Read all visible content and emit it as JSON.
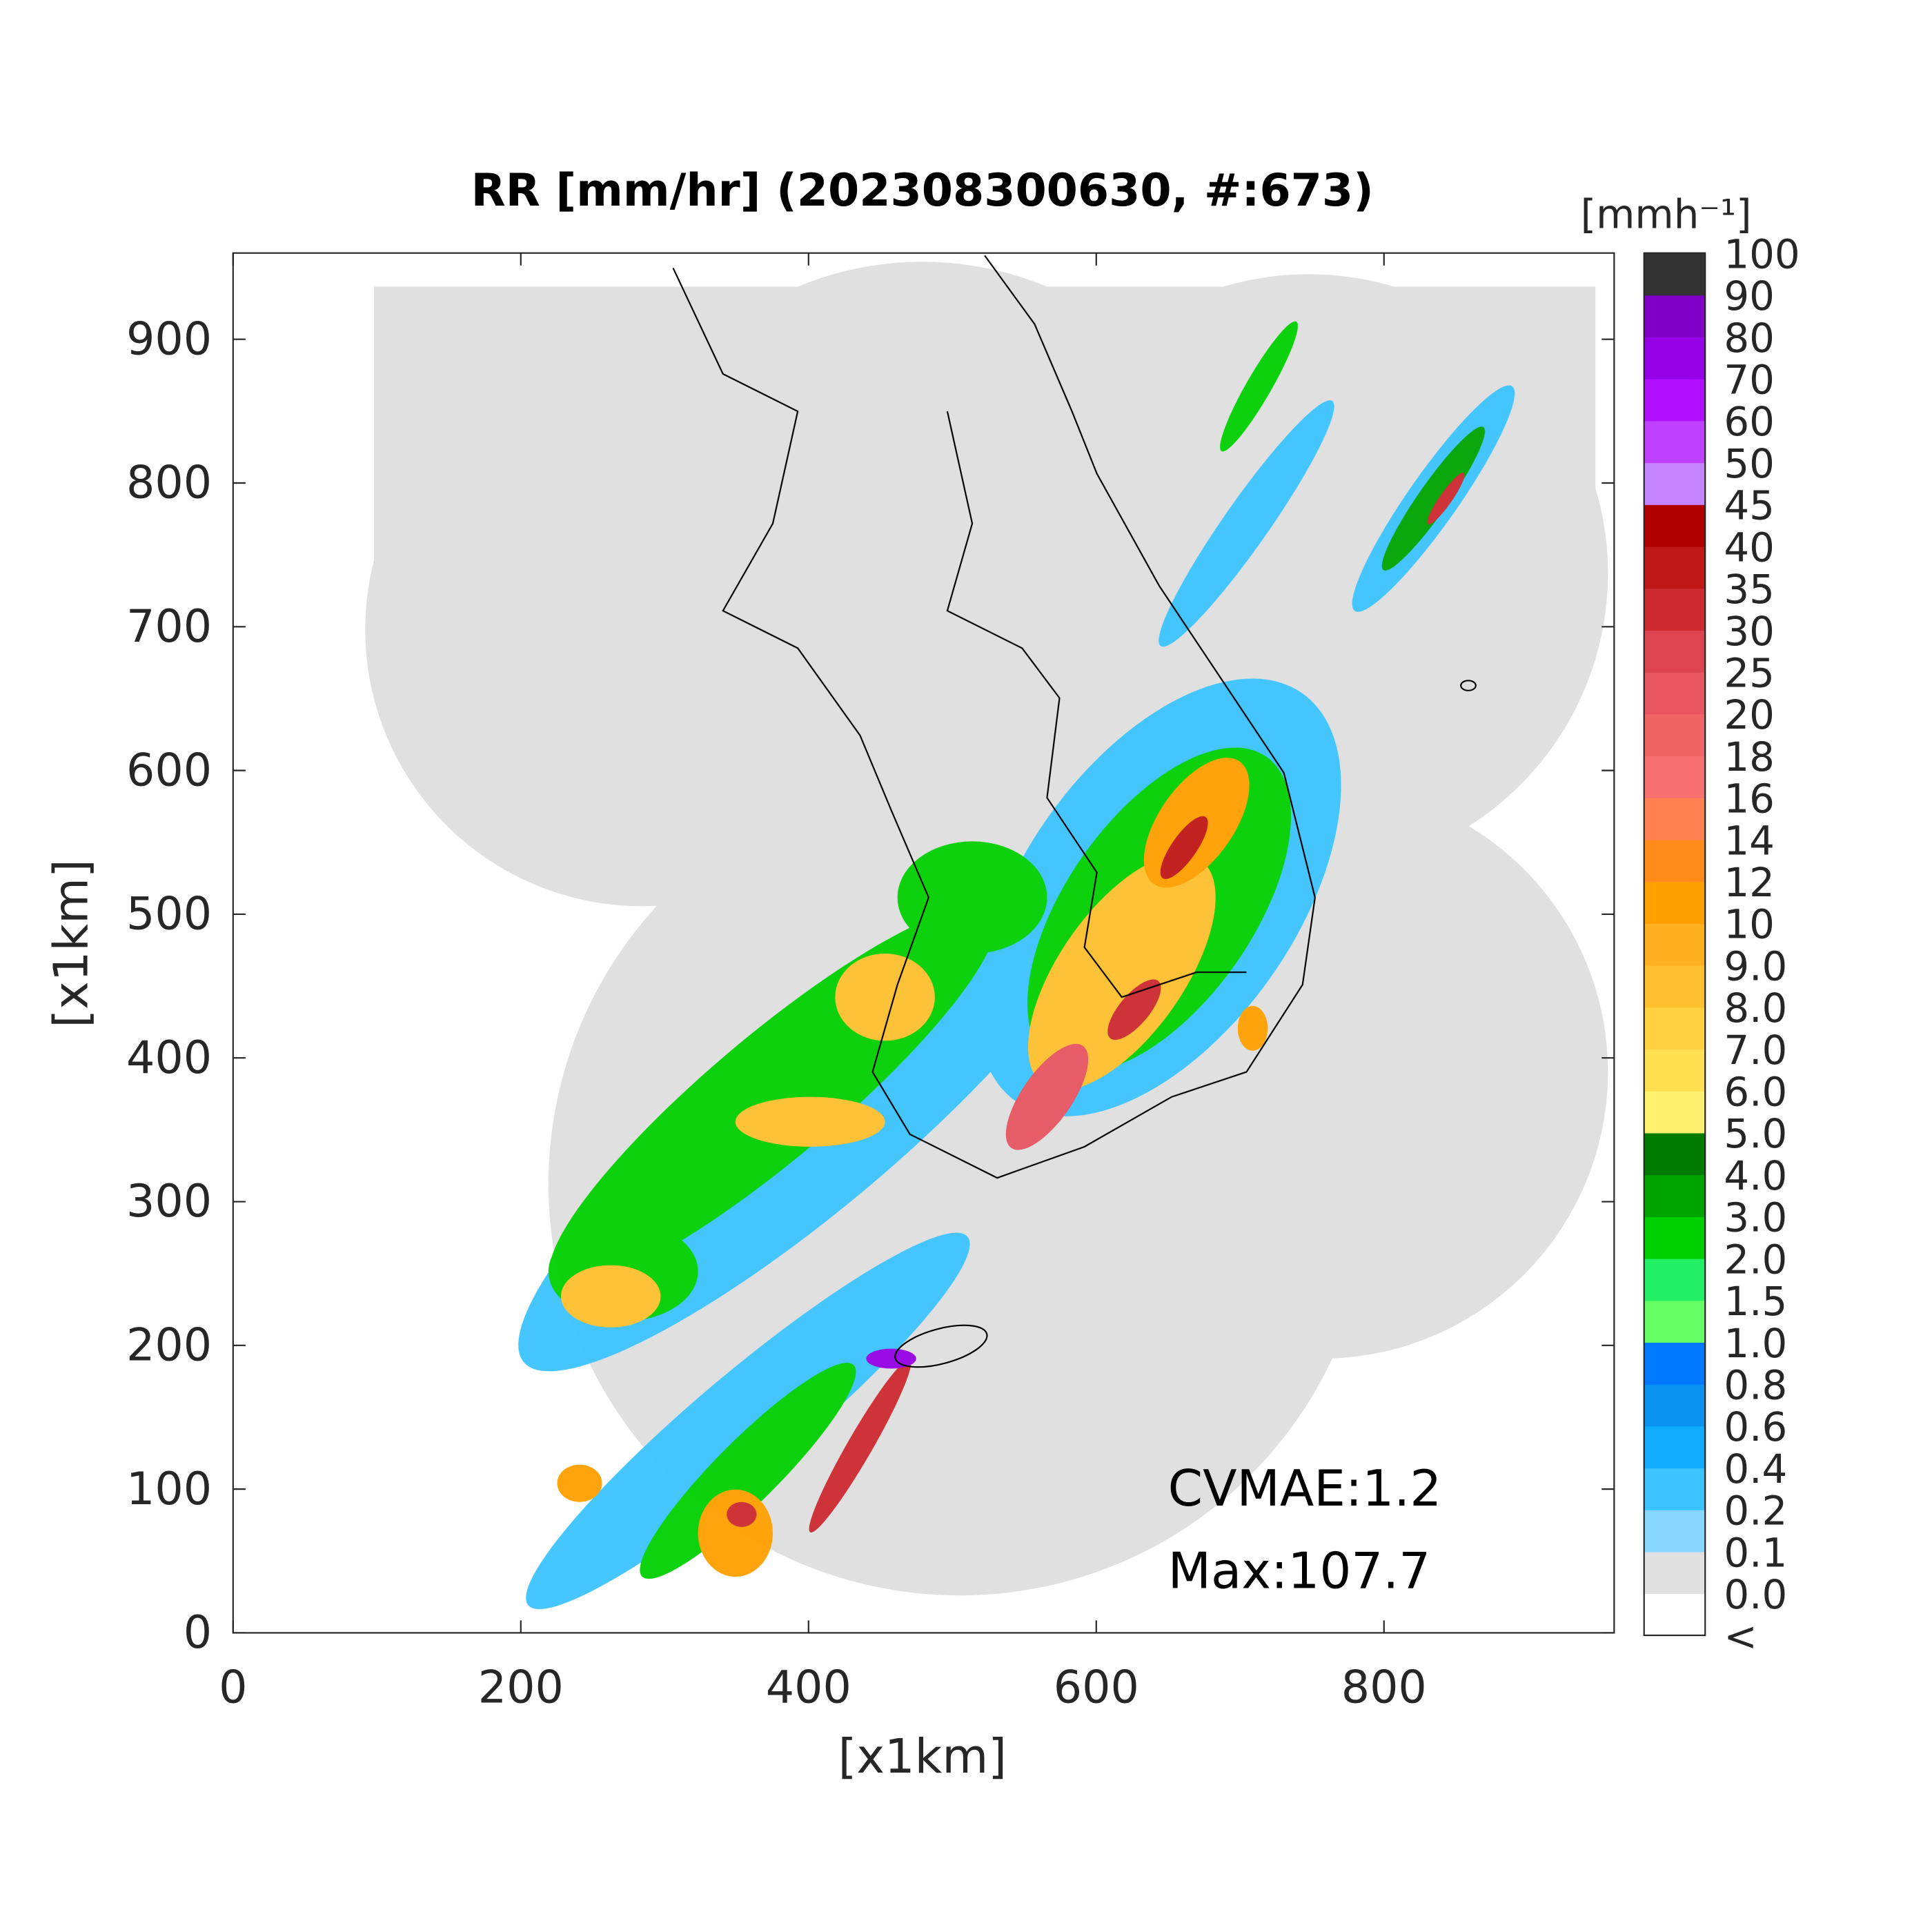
{
  "chart_data": {
    "type": "map",
    "title": "RR [mm/hr] (202308300630, #:673)",
    "xlabel": "[x1km]",
    "ylabel": "[x1km]",
    "xlim": [
      0,
      960
    ],
    "ylim": [
      0,
      960
    ],
    "xticks": [
      0,
      200,
      400,
      600,
      800
    ],
    "yticks": [
      0,
      100,
      200,
      300,
      400,
      500,
      600,
      700,
      800,
      900
    ],
    "annotations": [
      "CVMAE:1.2",
      "Max:107.7"
    ],
    "colorbar": {
      "title": "[mmh⁻¹]",
      "labels": [
        "<",
        "0.0",
        "0.1",
        "0.2",
        "0.4",
        "0.6",
        "0.8",
        "1.0",
        "1.5",
        "2.0",
        "3.0",
        "4.0",
        "5.0",
        "6.0",
        "7.0",
        "8.0",
        "9.0",
        "10",
        "12",
        "14",
        "16",
        "18",
        "20",
        "25",
        "30",
        "35",
        "40",
        "45",
        "50",
        "60",
        "70",
        "80",
        "90",
        "100"
      ],
      "colors": [
        "#ffffff",
        "#e0e0e0",
        "#87d7ff",
        "#3cc3ff",
        "#12acff",
        "#0a92f0",
        "#0078ff",
        "#66ff66",
        "#22ee66",
        "#00d000",
        "#00a400",
        "#007a00",
        "#fff06e",
        "#ffe050",
        "#ffd040",
        "#ffc030",
        "#ffb020",
        "#ffa000",
        "#ff8c1a",
        "#ff8050",
        "#f87070",
        "#f06464",
        "#e65560",
        "#dc4450",
        "#cc2a30",
        "#c01818",
        "#b00000",
        "#c484ff",
        "#c040ff",
        "#b010ff",
        "#9600e6",
        "#8000c8",
        "#333333"
      ]
    }
  }
}
